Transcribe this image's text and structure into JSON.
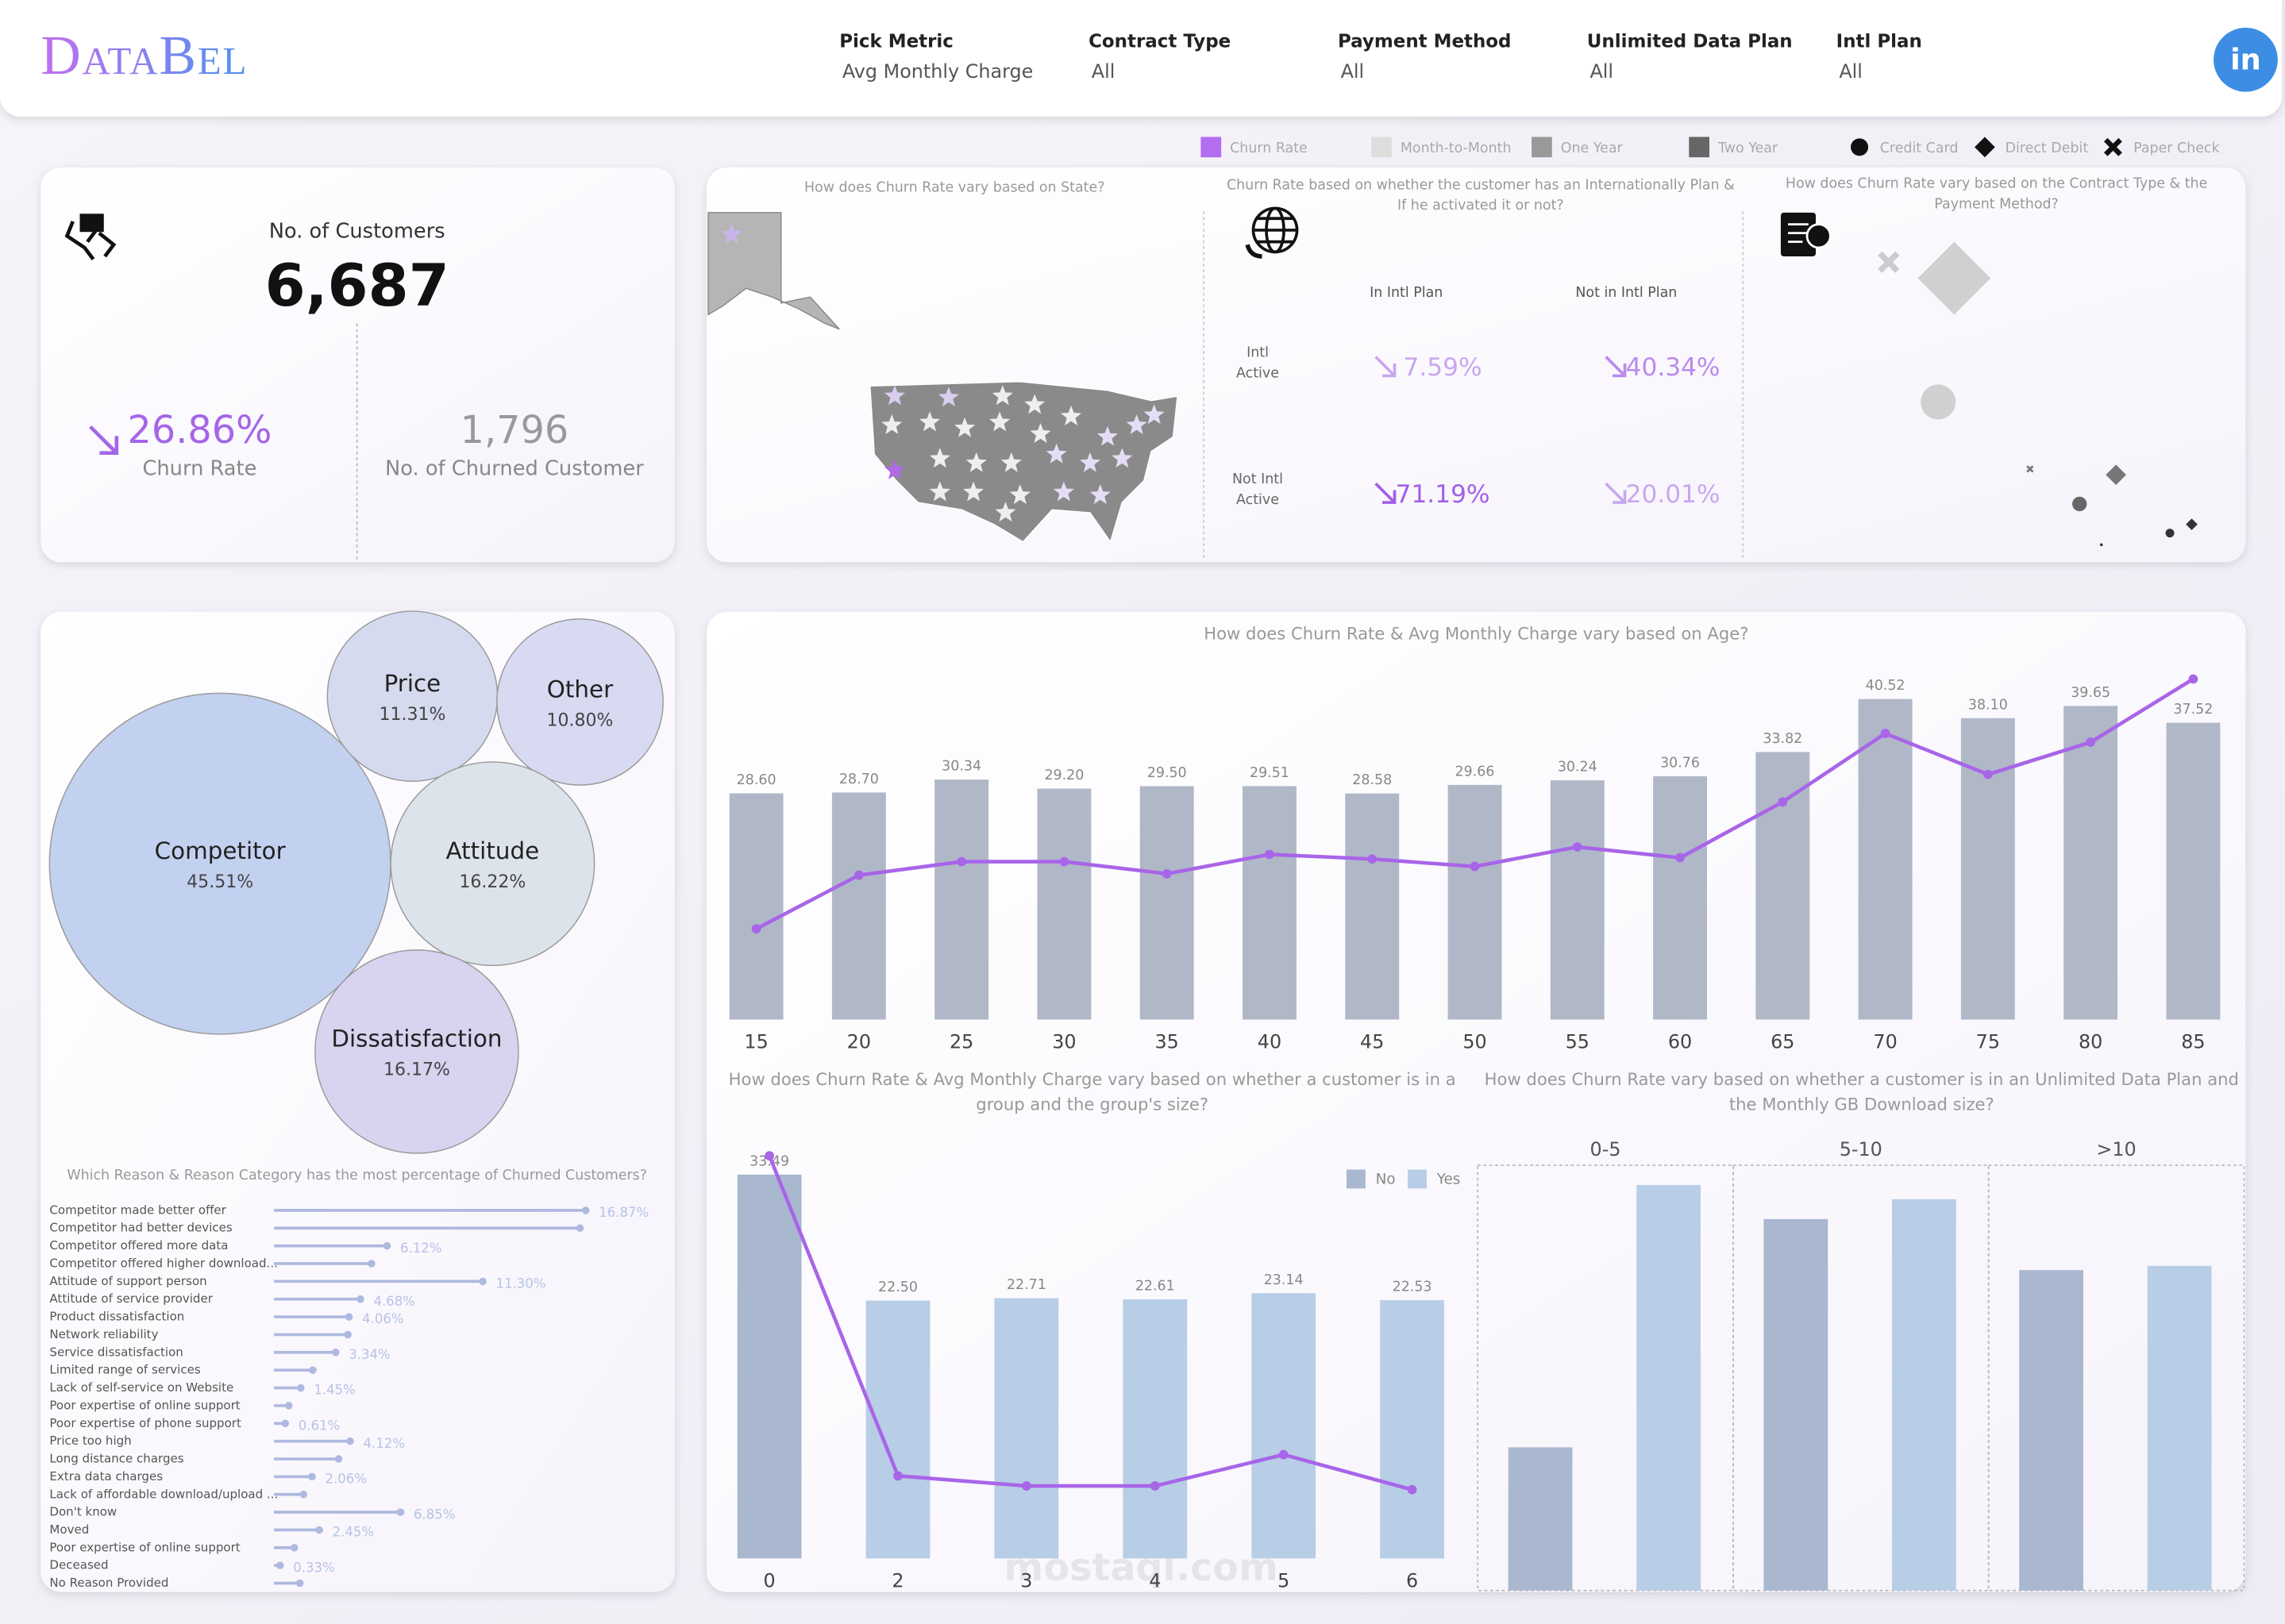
{
  "header": {
    "logo": "DataBel",
    "linkedin": "in"
  },
  "filters": [
    {
      "label": "Pick Metric",
      "value": "Avg Monthly Charge"
    },
    {
      "label": "Contract Type",
      "value": "All"
    },
    {
      "label": "Payment Method",
      "value": "All"
    },
    {
      "label": "Unlimited Data Plan",
      "value": "All"
    },
    {
      "label": "Intl Plan",
      "value": "All"
    }
  ],
  "legend": [
    {
      "name": "Churn Rate",
      "color": "#b36df0",
      "shape": "square"
    },
    {
      "name": "Month-to-Month",
      "color": "#dddddd",
      "shape": "square"
    },
    {
      "name": "One Year",
      "color": "#999999",
      "shape": "square"
    },
    {
      "name": "Two Year",
      "color": "#666666",
      "shape": "square"
    },
    {
      "name": "Credit Card",
      "color": "#111111",
      "shape": "circle"
    },
    {
      "name": "Direct Debit",
      "color": "#111111",
      "shape": "diamond"
    },
    {
      "name": "Paper Check",
      "color": "#111111",
      "shape": "cross"
    }
  ],
  "kpi": {
    "customers_label": "No. of Customers",
    "customers": "6,687",
    "churn_rate": "26.86%",
    "churn_rate_label": "Churn Rate",
    "churned": "1,796",
    "churned_label": "No. of Churned Customer"
  },
  "map": {
    "title": "How does Churn Rate vary based on State?"
  },
  "intl": {
    "title": "Churn Rate based on whether the customer has an Internationally Plan & If he activated it or not?",
    "columns": [
      "In Intl Plan",
      "Not in Intl Plan"
    ],
    "rows": [
      {
        "label": "Intl Active",
        "cells": [
          "7.59%",
          "40.34%"
        ],
        "colors": [
          "#c9a7ef",
          "#bb8aee"
        ]
      },
      {
        "label": "Not Intl Active",
        "cells": [
          "71.19%",
          "20.01%"
        ],
        "colors": [
          "#a260e8",
          "#c9a7ef"
        ]
      }
    ]
  },
  "contract": {
    "title": "How does Churn Rate vary based on the Contract Type & the Payment Method?"
  },
  "watermark": "mostaql.com",
  "chart_data": [
    {
      "type": "bubble",
      "categories": [
        "Competitor",
        "Price",
        "Other",
        "Attitude",
        "Dissatisfaction"
      ],
      "values": [
        45.51,
        11.31,
        10.8,
        16.22,
        16.17
      ],
      "value_labels": [
        "45.51%",
        "11.31%",
        "10.80%",
        "16.22%",
        "16.17%"
      ],
      "colors": [
        "#c2d1ef",
        "#d6daee",
        "#d8daf2",
        "#dde3ea",
        "#d8d3ef"
      ]
    },
    {
      "type": "lollipop",
      "title": "Which Reason & Reason Category has the most percentage of Churned Customers?",
      "categories": [
        "Competitor made better offer",
        "Competitor had better devices",
        "Competitor offered more data",
        "Competitor offered higher download...",
        "Attitude of support person",
        "Attitude of service provider",
        "Product dissatisfaction",
        "Network reliability",
        "Service dissatisfaction",
        "Limited range of services",
        "Lack of self-service on Website",
        "Poor expertise of online support",
        "Poor expertise of phone support",
        "Price too high",
        "Long distance charges",
        "Extra data charges",
        "Lack of affordable download/upload ...",
        "Don't know",
        "Moved",
        "Poor expertise of online support",
        "Deceased",
        "No Reason Provided"
      ],
      "values": [
        16.87,
        16.56,
        6.12,
        5.28,
        11.3,
        4.68,
        4.06,
        4.0,
        3.34,
        2.1,
        1.45,
        0.8,
        0.61,
        4.12,
        3.5,
        2.06,
        1.6,
        6.85,
        2.45,
        1.1,
        0.33,
        1.4
      ],
      "value_labels": [
        "16.87%",
        null,
        "6.12%",
        null,
        "11.30%",
        "4.68%",
        "4.06%",
        null,
        "3.34%",
        null,
        "1.45%",
        null,
        "0.61%",
        "4.12%",
        null,
        "2.06%",
        null,
        "6.85%",
        "2.45%",
        null,
        "0.33%",
        null
      ],
      "color": "#aeb9e0",
      "xlim": [
        0,
        20
      ]
    },
    {
      "type": "bar_line",
      "title": "How does Churn Rate & Avg Monthly Charge vary based on Age?",
      "categories": [
        15,
        20,
        25,
        30,
        35,
        40,
        45,
        50,
        55,
        60,
        65,
        70,
        75,
        80,
        85
      ],
      "series": [
        {
          "color": "#b0b8c8",
          "values": [
            28.6,
            28.7,
            30.34,
            29.2,
            29.5,
            29.51,
            28.58,
            29.66,
            30.24,
            30.76,
            33.82,
            40.52,
            38.1,
            39.65,
            37.52
          ],
          "value_labels": [
            "28.60",
            "28.70",
            "30.34",
            "29.20",
            "29.50",
            "29.51",
            "28.58",
            "29.66",
            "30.24",
            "30.76",
            "33.82",
            "40.52",
            "38.10",
            "39.65",
            "37.52"
          ]
        },
        {
          "color": "#a865e8",
          "axis": "y2",
          "values": [
            13.5,
            21.5,
            23.5,
            23.5,
            21.7,
            24.6,
            23.9,
            22.8,
            25.7,
            24.1,
            32.4,
            42.6,
            36.5,
            41.3,
            50.7
          ]
        }
      ],
      "ylim": [
        0,
        45
      ],
      "y2lim": [
        0,
        53
      ]
    },
    {
      "type": "bar_line",
      "title": "How does Churn Rate & Avg Monthly Charge vary based on whether a customer is in a group and the group's size?",
      "categories": [
        0,
        2,
        3,
        4,
        5,
        6
      ],
      "series": [
        {
          "colors": [
            "#a9b7cf",
            "#b8cde6",
            "#b8cde6",
            "#b8cde6",
            "#b8cde6",
            "#b8cde6"
          ],
          "values": [
            33.49,
            22.5,
            22.71,
            22.61,
            23.14,
            22.53
          ],
          "value_labels": [
            "33.49",
            "22.50",
            "22.71",
            "22.61",
            "23.14",
            "22.53"
          ]
        },
        {
          "color": "#a865e8",
          "axis": "y2",
          "values": [
            32.2,
            6.6,
            5.8,
            5.8,
            8.3,
            5.5
          ]
        }
      ],
      "ylim": [
        0,
        36
      ],
      "y2lim": [
        0,
        33
      ]
    },
    {
      "type": "grouped_bar",
      "title": "How does Churn Rate vary based on whether a customer is in an Unlimited Data Plan and the Monthly GB Download size?",
      "categories": [
        "0-5",
        "5-10",
        ">10"
      ],
      "series": [
        {
          "name": "No",
          "color": "#a9b7cf",
          "values": [
            10.1,
            26.2,
            22.6
          ]
        },
        {
          "name": "Yes",
          "color": "#b8cde6",
          "values": [
            28.6,
            27.6,
            22.9
          ]
        }
      ],
      "ylim": [
        0,
        30
      ]
    }
  ]
}
